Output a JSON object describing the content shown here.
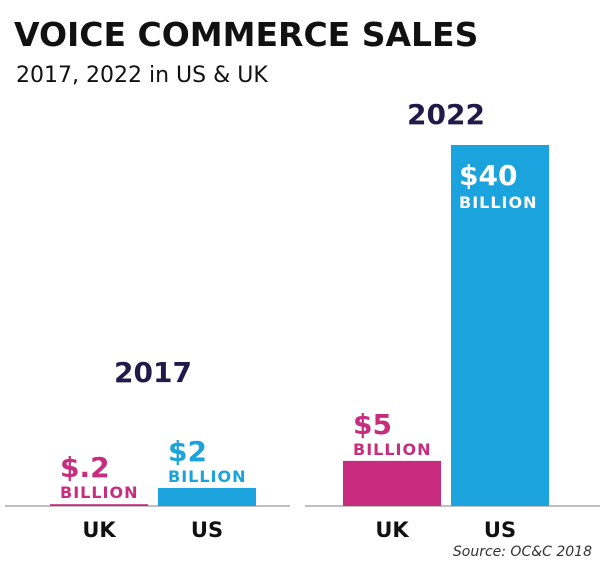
{
  "chart_data": {
    "type": "bar",
    "title": "VOICE COMMERCE SALES",
    "subtitle": "2017, 2022 in US & UK",
    "categories": [
      "2017",
      "2022"
    ],
    "series": [
      {
        "name": "UK",
        "color": "#c72c7f",
        "values": [
          0.2,
          5
        ],
        "value_labels": [
          "$.2",
          "$5"
        ]
      },
      {
        "name": "US",
        "color": "#1aa3dc",
        "values": [
          2,
          40
        ],
        "value_labels": [
          "$2",
          "$40"
        ]
      }
    ],
    "value_unit": "BILLION",
    "source": "Source: OC&C 2018"
  }
}
